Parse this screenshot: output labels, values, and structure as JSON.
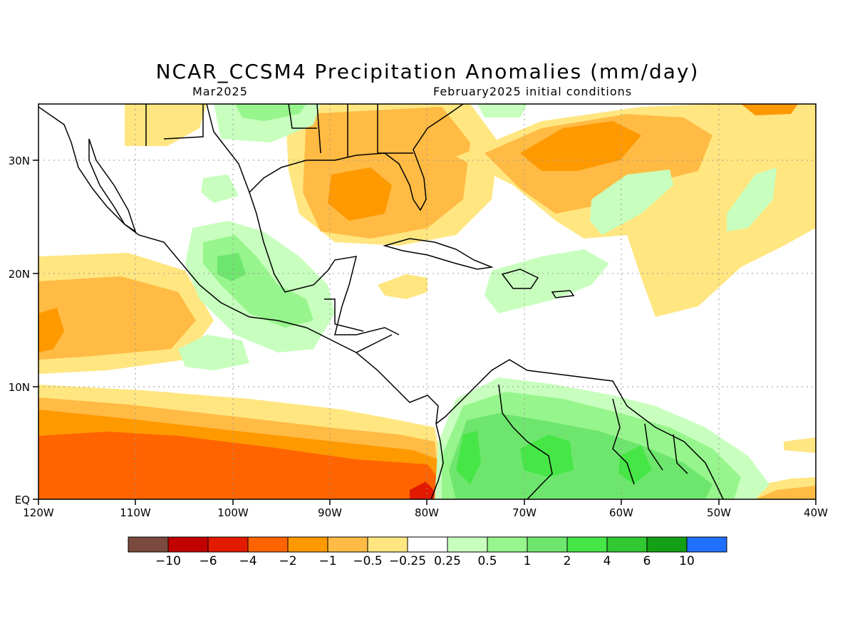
{
  "title": "NCAR_CCSM4 Precipitation Anomalies (mm/day)",
  "subtitle_left": "Mar2025",
  "subtitle_right": "February2025 initial conditions",
  "map": {
    "lon_range": [
      -120,
      -40
    ],
    "lat_range": [
      0,
      35
    ],
    "gridlines": "dotted",
    "lon_ticks": [
      "120W",
      "110W",
      "100W",
      "90W",
      "80W",
      "70W",
      "60W",
      "50W",
      "40W"
    ],
    "lat_ticks": [
      "EQ",
      "10N",
      "20N",
      "30N"
    ]
  },
  "colorbar": {
    "colors": [
      "#7a4a3e",
      "#c30000",
      "#e31a00",
      "#ff6400",
      "#ff9900",
      "#ffbb44",
      "#ffe680",
      "#ffffff",
      "#c8ffbe",
      "#96f58c",
      "#6ee66e",
      "#46e646",
      "#32c832",
      "#14a014",
      "#2070ff"
    ],
    "labels": [
      "−10",
      "−6",
      "−4",
      "−2",
      "−1",
      "−0.5",
      "−0.25",
      "0.25",
      "0.5",
      "1",
      "2",
      "4",
      "6",
      "10"
    ]
  }
}
